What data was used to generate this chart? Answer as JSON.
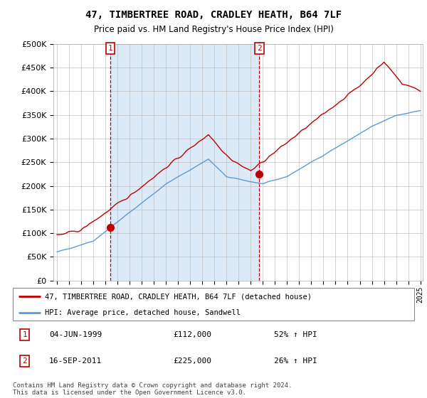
{
  "title": "47, TIMBERTREE ROAD, CRADLEY HEATH, B64 7LF",
  "subtitle": "Price paid vs. HM Land Registry's House Price Index (HPI)",
  "ylim": [
    0,
    500000
  ],
  "yticks": [
    0,
    50000,
    100000,
    150000,
    200000,
    250000,
    300000,
    350000,
    400000,
    450000,
    500000
  ],
  "hpi_color": "#5b9bd5",
  "price_color": "#c00000",
  "shade_color": "#dceaf7",
  "sale1_date_num": 1999.42,
  "sale1_price": 112000,
  "sale2_date_num": 2011.71,
  "sale2_price": 225000,
  "legend_label1": "47, TIMBERTREE ROAD, CRADLEY HEATH, B64 7LF (detached house)",
  "legend_label2": "HPI: Average price, detached house, Sandwell",
  "annotation1_date": "04-JUN-1999",
  "annotation1_price": "£112,000",
  "annotation1_hpi": "52% ↑ HPI",
  "annotation2_date": "16-SEP-2011",
  "annotation2_price": "£225,000",
  "annotation2_hpi": "26% ↑ HPI",
  "footer": "Contains HM Land Registry data © Crown copyright and database right 2024.\nThis data is licensed under the Open Government Licence v3.0.",
  "xlim_left": 1994.7,
  "xlim_right": 2025.2
}
